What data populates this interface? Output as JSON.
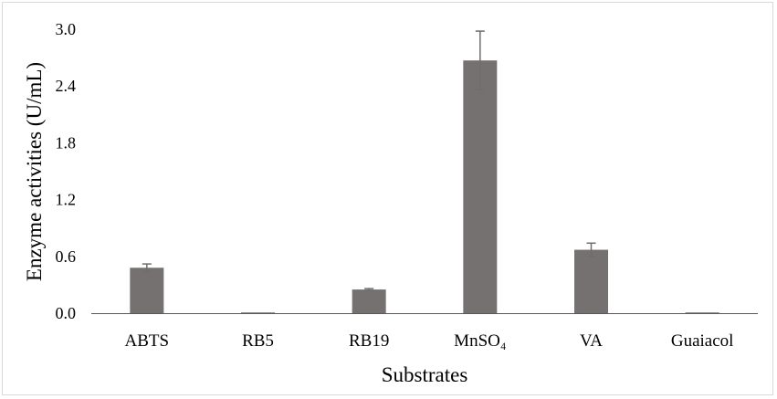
{
  "chart_data": {
    "type": "bar",
    "title": "",
    "xlabel": "Substrates",
    "ylabel": "Enzyme  activities (U/mL)",
    "categories": [
      "ABTS",
      "RB5",
      "RB19",
      "MnSO₄",
      "VA",
      "Guaiacol"
    ],
    "series": [
      {
        "values": [
          0.48,
          0.0,
          0.25,
          2.67,
          0.67,
          0.0
        ],
        "errors": [
          0.04,
          0.0,
          0.01,
          0.31,
          0.07,
          0.0
        ]
      }
    ],
    "ylim": [
      0,
      3.0
    ],
    "yticks": [
      "0.0",
      "0.6",
      "1.2",
      "1.8",
      "2.4",
      "3.0"
    ],
    "grid": false,
    "legend": "none",
    "colors": {
      "bar": "#767171",
      "error_bar": "#6e6e6e",
      "axis": "#595959"
    }
  }
}
